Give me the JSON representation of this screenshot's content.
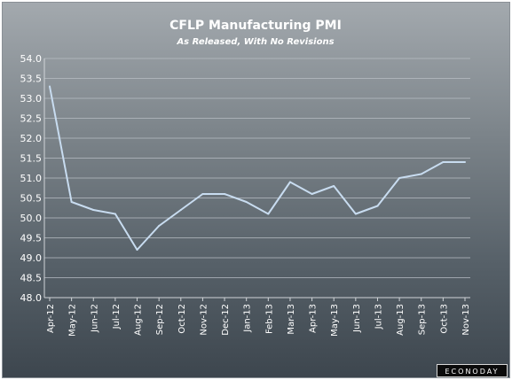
{
  "chart_data": {
    "type": "line",
    "title": "CFLP Manufacturing PMI",
    "subtitle": "As Released, With No Revisions",
    "categories": [
      "Apr-12",
      "May-12",
      "Jun-12",
      "Jul-12",
      "Aug-12",
      "Sep-12",
      "Oct-12",
      "Nov-12",
      "Dec-12",
      "Jan-13",
      "Feb-13",
      "Mar-13",
      "Apr-13",
      "May-13",
      "Jun-13",
      "Jul-13",
      "Aug-13",
      "Sep-13",
      "Oct-13",
      "Nov-13"
    ],
    "series": [
      {
        "values": [
          53.3,
          50.4,
          50.2,
          50.1,
          49.2,
          49.8,
          50.2,
          50.6,
          50.6,
          50.4,
          50.1,
          50.9,
          50.6,
          50.8,
          50.1,
          50.3,
          51.0,
          51.1,
          51.4,
          51.4
        ]
      }
    ],
    "ylim": [
      48.0,
      54.0
    ],
    "yticks": [
      "48.0",
      "48.5",
      "49.0",
      "49.5",
      "50.0",
      "50.5",
      "51.0",
      "51.5",
      "52.0",
      "52.5",
      "53.0",
      "53.5",
      "54.0"
    ],
    "grid": true,
    "line_color": "#c8dcf0",
    "grid_color": "#b8bec4"
  },
  "watermark": "ECONODAY"
}
